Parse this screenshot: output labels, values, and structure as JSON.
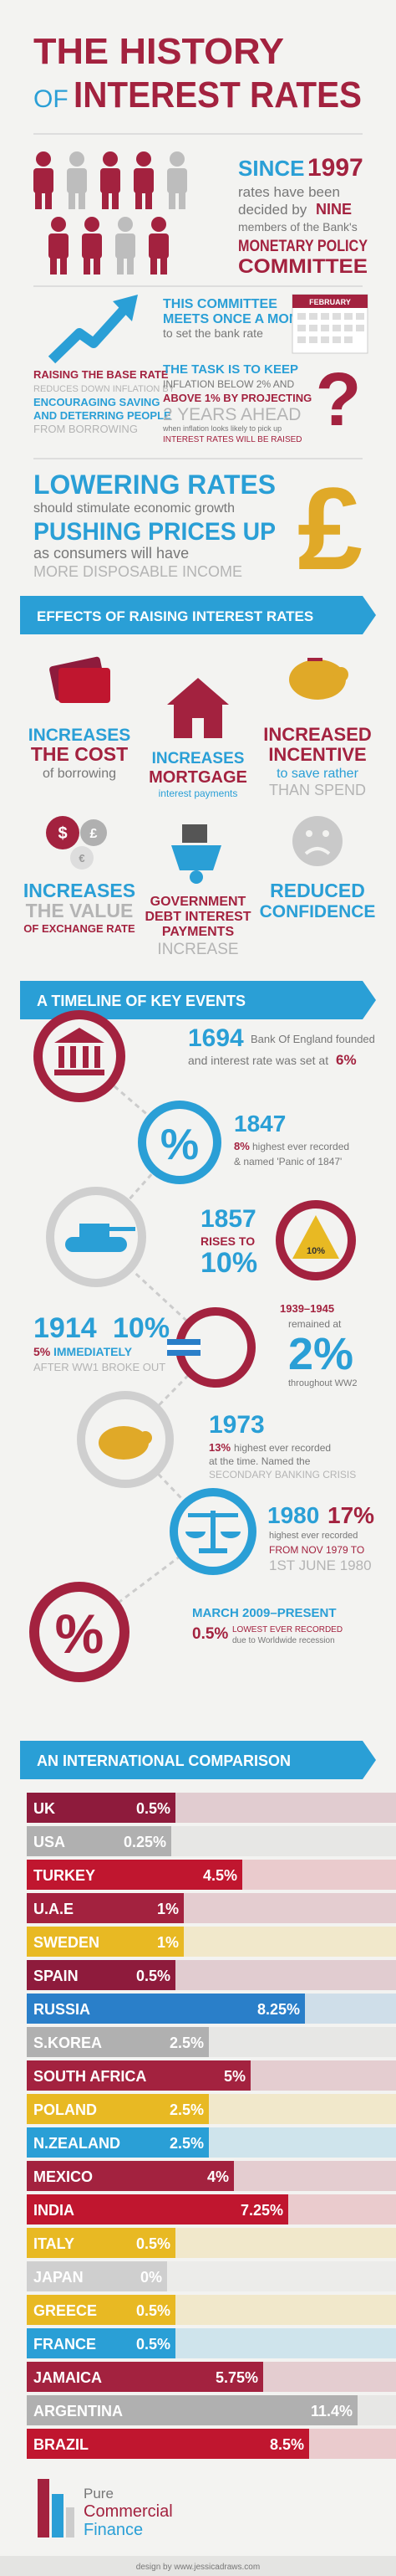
{
  "header": {
    "title_line1": "THE HISTORY",
    "title_of": "OF",
    "title_line2": "INTEREST RATES"
  },
  "committee": {
    "since": "SINCE",
    "year": "1997",
    "line1": "rates have been",
    "line2": "decided by",
    "nine": "NINE",
    "line3": "members of the Bank's",
    "name1": "MONETARY POLICY",
    "name2": "COMMITTEE"
  },
  "meeting": {
    "line1": "THIS COMMITTEE",
    "line2": "MEETS ONCE A MONTH",
    "line3": "to set the bank rate",
    "month": "FEBRUARY"
  },
  "raising": {
    "line1": "RAISING THE BASE RATE",
    "line2": "REDUCES DOWN INFLATION BY",
    "line3": "ENCOURAGING SAVING",
    "line4": "AND DETERRING PEOPLE",
    "line5": "FROM BORROWING"
  },
  "task": {
    "line1": "THE TASK IS TO KEEP",
    "line2": "INFLATION BELOW 2% AND",
    "line3": "ABOVE 1% BY PROJECTING",
    "line4": "2 YEARS AHEAD",
    "line5": "when inflation looks likely to pick up",
    "line6": "INTEREST RATES WILL BE RAISED"
  },
  "lowering": {
    "line1": "LOWERING RATES",
    "line2": "should stimulate economic growth",
    "line3": "PUSHING PRICES UP",
    "line4": "as consumers will have",
    "line5": "MORE DISPOSABLE INCOME"
  },
  "effects": {
    "title": "EFFECTS OF RAISING INTEREST RATES",
    "items": [
      [
        "INCREASES",
        "THE COST",
        "of borrowing"
      ],
      [
        "INCREASES",
        "MORTGAGE",
        "interest payments"
      ],
      [
        "INCREASED",
        "INCENTIVE",
        "to save rather",
        "THAN SPEND"
      ],
      [
        "INCREASES",
        "THE VALUE",
        "OF EXCHANGE RATE"
      ],
      [
        "GOVERNMENT",
        "DEBT INTEREST",
        "PAYMENTS",
        "INCREASE"
      ],
      [
        "REDUCED",
        "CONFIDENCE"
      ]
    ]
  },
  "timeline": {
    "title": "A TIMELINE OF KEY EVENTS",
    "e1694": {
      "year": "1694",
      "line1": "Bank Of England founded",
      "line2": "and interest rate was set at",
      "rate": "6%"
    },
    "e1847": {
      "year": "1847",
      "rate": "8%",
      "line1": "highest ever recorded",
      "line2": "& named 'Panic of 1847'"
    },
    "e1857": {
      "year": "1857",
      "line1": "RISES TO",
      "rate": "10%",
      "icon": "10%"
    },
    "e1914": {
      "year": "1914",
      "rate": "10%",
      "from": "5%",
      "line1": "IMMEDIATELY",
      "line2": "AFTER WW1 BROKE OUT"
    },
    "e1939": {
      "years": "1939–1945",
      "line1": "remained at",
      "rate": "2%",
      "line2": "throughout WW2"
    },
    "e1973": {
      "year": "1973",
      "rate": "13%",
      "line1": "highest ever recorded",
      "line2": "at the time. Named the",
      "line3": "SECONDARY BANKING CRISIS"
    },
    "e1980": {
      "year": "1980",
      "rate": "17%",
      "line1": "highest ever recorded",
      "line2": "FROM NOV 1979 TO",
      "line3": "1ST JUNE 1980"
    },
    "e2009": {
      "period": "MARCH 2009–PRESENT",
      "rate": "0.5%",
      "line1": "LOWEST EVER RECORDED",
      "line2": "due to Worldwide recession"
    }
  },
  "comparison": {
    "title": "AN INTERNATIONAL COMPARISON",
    "countries": [
      "UK",
      "USA",
      "TURKEY",
      "U.A.E",
      "SWEDEN",
      "SPAIN",
      "RUSSIA",
      "S.KOREA",
      "SOUTH AFRICA",
      "POLAND",
      "N.ZEALAND",
      "MEXICO",
      "INDIA",
      "ITALY",
      "JAPAN",
      "GREECE",
      "FRANCE",
      "JAMAICA",
      "ARGENTINA",
      "BRAZIL"
    ],
    "values": [
      0.5,
      0.25,
      4.5,
      1,
      1,
      0.5,
      8.25,
      2.5,
      5,
      2.5,
      2.5,
      4,
      7.25,
      0.5,
      0,
      0.5,
      0.5,
      5.75,
      11.4,
      8.5
    ],
    "value_labels": [
      "0.5%",
      "0.25%",
      "4.5%",
      "1%",
      "1%",
      "0.5%",
      "8.25%",
      "2.5%",
      "5%",
      "2.5%",
      "2.5%",
      "4%",
      "7.25%",
      "0.5%",
      "0%",
      "0.5%",
      "0.5%",
      "5.75%",
      "11.4%",
      "8.5%"
    ],
    "colors": [
      "#8e1b3c",
      "#b0b0b0",
      "#c0162f",
      "#a3223f",
      "#e8b923",
      "#8e1b3c",
      "#2a7fc9",
      "#b0b0b0",
      "#a3223f",
      "#e8b923",
      "#2a9fd6",
      "#a3223f",
      "#c0162f",
      "#e8b923",
      "#cfcfcf",
      "#e8b923",
      "#2a9fd6",
      "#a3223f",
      "#b0b0b0",
      "#c0162f"
    ]
  },
  "footer": {
    "brand1": "Pure",
    "brand2": "Commercial",
    "brand3": "Finance",
    "credit": "design by www.jessicadraws.com"
  }
}
